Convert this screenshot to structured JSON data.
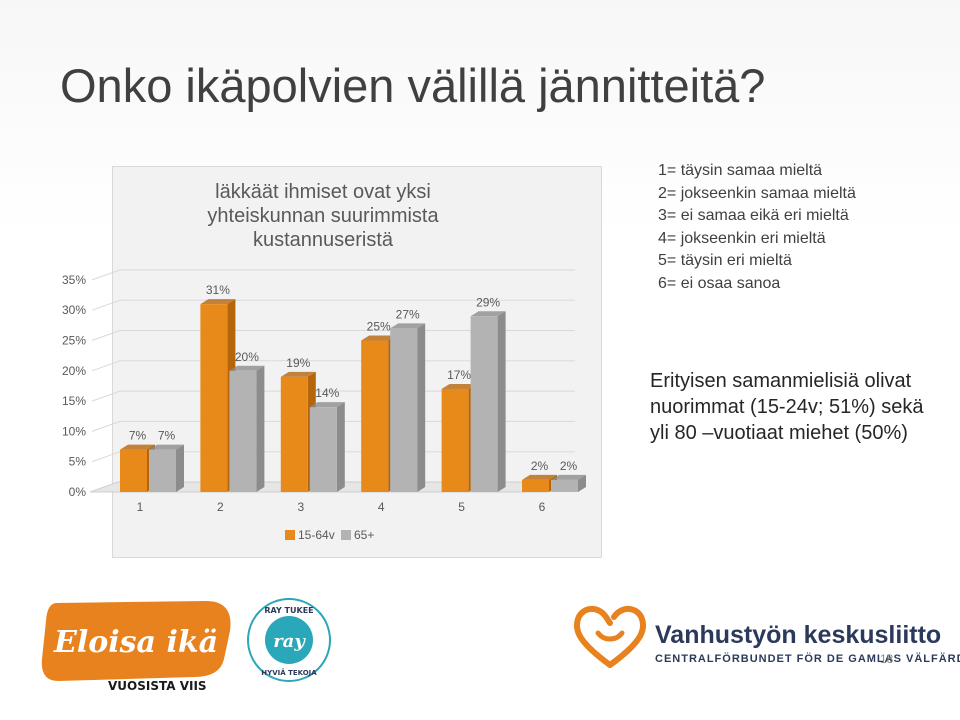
{
  "slide": {
    "title": "Onko ikäpolvien välillä jännitteitä?",
    "page_number": "18"
  },
  "scale_legend": [
    "1= täysin samaa mieltä",
    "2= jokseenkin samaa mieltä",
    "3= ei samaa eikä eri mieltä",
    "4= jokseenkin eri mieltä",
    "5= täysin eri mieltä",
    "6= ei osaa sanoa"
  ],
  "finding": {
    "text": "Erityisen samanmielisiä olivat nuorimmat (15-24v; 51%) sekä yli 80 –vuotiaat miehet (50%)"
  },
  "chart_data": {
    "type": "bar",
    "title": "läkkäät ihmiset ovat yksi yhteiskunnan suurimmista kustannuseristä",
    "categories": [
      "1",
      "2",
      "3",
      "4",
      "5",
      "6"
    ],
    "series": [
      {
        "name": "15-64v",
        "values": [
          7,
          31,
          19,
          25,
          17,
          2
        ],
        "labels": [
          "7%",
          "31%",
          "19%",
          "25%",
          "17%",
          "2%"
        ]
      },
      {
        "name": "65+",
        "values": [
          7,
          20,
          14,
          27,
          29,
          2
        ],
        "labels": [
          "7%",
          "20%",
          "14%",
          "27%",
          "29%",
          "2%"
        ]
      }
    ],
    "y_ticks": [
      "0%",
      "5%",
      "10%",
      "15%",
      "20%",
      "25%",
      "30%",
      "35%"
    ],
    "ylim": [
      0,
      35
    ],
    "grid": true,
    "legend_position": "bottom",
    "colors": {
      "series1": "#e88a1a",
      "series1_dark": "#b5650c",
      "series2": "#b3b3b3",
      "series2_dark": "#8c8c8c"
    }
  },
  "footer": {
    "logo_eloisa": {
      "main": "Eloisa ikä",
      "sub": "VUOSISTA VIIS"
    },
    "logo_ray": {
      "top": "RAY TUKEE",
      "center": "ray",
      "bottom": "HYVIÄ TEKOJA"
    },
    "logo_vanhustyo": {
      "main": "Vanhustyön keskusliitto",
      "sub": "CENTRALFÖRBUNDET FÖR DE GAMLAS VÄLFÄRD"
    },
    "colors": {
      "orange": "#e8821e",
      "teal": "#2aa7b8",
      "navy": "#2b3a5a"
    }
  }
}
